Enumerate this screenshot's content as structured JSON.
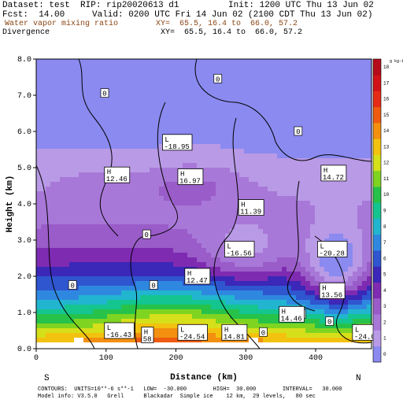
{
  "header": {
    "dataset": "Dataset: test  RIP: rip20020613 d1",
    "init": "Init: 1200 UTC Thu 13 Jun 02",
    "fcst": "Fcst:  14.00",
    "valid": "Valid: 0200 UTC Fri 14 Jun 02 (2100 CDT Thu 13 Jun 02)",
    "field1": "Water vapor mixing ratio",
    "xy1": "XY=  65.5, 16.4 to  66.0, 57.2",
    "field2": "Divergence",
    "xy2": "XY=  65.5, 16.4 to  66.0, 57.2"
  },
  "footer": {
    "line1": "CONTOURS:  UNITS=10**-6 s**-1   LOW=  -30.000        HIGH=  30.000        INTERVAL=   30.000",
    "line2": "Model info: V3.5.0   Grell      Blackadar  Simple ice    12 km,  29 levels,   80 sec"
  },
  "chart_data": {
    "type": "heatmap",
    "xlabel": "Distance (km)",
    "ylabel": "Height (km)",
    "xlim": [
      0,
      480
    ],
    "ylim": [
      0,
      8
    ],
    "x_ticks": [
      0,
      100,
      200,
      300,
      400
    ],
    "y_ticks": [
      0.0,
      1.0,
      2.0,
      3.0,
      4.0,
      5.0,
      6.0,
      7.0,
      8.0
    ],
    "left_end_label": "S",
    "right_end_label": "N",
    "colorbar": {
      "unit": "g kg-1",
      "levels": [
        0,
        1,
        2,
        3,
        4,
        5,
        6,
        7,
        8,
        9,
        10,
        11,
        12,
        13,
        14,
        15,
        16,
        17,
        18
      ],
      "colors": [
        "#8a8af0",
        "#b99ae6",
        "#a878d8",
        "#9a5cc8",
        "#7e2bb2",
        "#3b27b8",
        "#2f55cf",
        "#2f88e0",
        "#22b5d0",
        "#14c58f",
        "#26c24a",
        "#7fd421",
        "#d6e01a",
        "#f2c20f",
        "#f39010",
        "#ef5b10",
        "#e42b16",
        "#d11317",
        "#b40c1a"
      ]
    },
    "contour_labels": [
      {
        "text": "0",
        "x": 260,
        "y": 7.45
      },
      {
        "text": "0",
        "x": 98,
        "y": 7.05
      },
      {
        "text": "0",
        "x": 375,
        "y": 6.0
      },
      {
        "text": "0",
        "x": 158,
        "y": 3.15
      },
      {
        "text": "0",
        "x": 52,
        "y": 1.75
      },
      {
        "text": "0",
        "x": 168,
        "y": 1.75
      },
      {
        "text": "0",
        "x": 380,
        "y": 0.95
      },
      {
        "text": "0",
        "x": 420,
        "y": 0.75
      },
      {
        "text": "0",
        "x": 325,
        "y": 0.45
      }
    ],
    "extrema": [
      {
        "kind": "L",
        "value": "-18.95",
        "x": 183,
        "y": 5.7
      },
      {
        "kind": "H",
        "value": "12.46",
        "x": 100,
        "y": 4.8
      },
      {
        "kind": "H",
        "value": "16.97",
        "x": 205,
        "y": 4.75
      },
      {
        "kind": "H",
        "value": "14.72",
        "x": 410,
        "y": 4.85
      },
      {
        "kind": "H",
        "value": "11.39",
        "x": 292,
        "y": 3.9
      },
      {
        "kind": "L",
        "value": "-16.56",
        "x": 272,
        "y": 2.75
      },
      {
        "kind": "L",
        "value": "-20.28",
        "x": 405,
        "y": 2.75
      },
      {
        "kind": "H",
        "value": "12.47",
        "x": 215,
        "y": 2.0
      },
      {
        "kind": "H",
        "value": "13.56",
        "x": 408,
        "y": 1.6
      },
      {
        "kind": "H",
        "value": "14.46",
        "x": 350,
        "y": 0.95
      },
      {
        "kind": "L",
        "value": "-16.43",
        "x": 100,
        "y": 0.5
      },
      {
        "kind": "H",
        "value": "58",
        "x": 153,
        "y": 0.38
      },
      {
        "kind": "L",
        "value": "-24.54",
        "x": 205,
        "y": 0.45
      },
      {
        "kind": "H",
        "value": "14.81",
        "x": 268,
        "y": 0.45
      },
      {
        "kind": "L",
        "value": "-24.0",
        "x": 455,
        "y": 0.45
      }
    ]
  }
}
